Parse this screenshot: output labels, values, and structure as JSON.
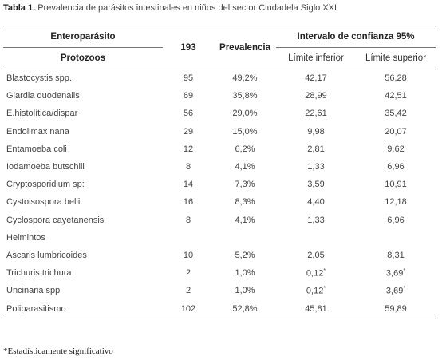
{
  "caption": {
    "label": "Tabla 1.",
    "text": " Prevalencia de parásitos intestinales en niños del sector Ciudadela Siglo XXI"
  },
  "headers": {
    "col1_top": "Enteroparásito",
    "col1_bottom": "Protozoos",
    "col2": "193",
    "col3": "Prevalencia",
    "ci_group": "Intervalo de confianza 95%",
    "ci_lower": "Límite inferior",
    "ci_upper": "Límite superior"
  },
  "rows": [
    {
      "name": "Blastocystis spp.",
      "n": "95",
      "prev": "49,2%",
      "lower": "42,17",
      "upper": "56,28"
    },
    {
      "name": "Giardia duodenalis",
      "n": "69",
      "prev": "35,8%",
      "lower": "28,99",
      "upper": "42,51"
    },
    {
      "name": "E.histolítica/dispar",
      "n": "56",
      "prev": "29,0%",
      "lower": "22,61",
      "upper": "35,42"
    },
    {
      "name": "Endolimax nana",
      "n": "29",
      "prev": "15,0%",
      "lower": "9,98",
      "upper": "20,07"
    },
    {
      "name": "Entamoeba coli",
      "n": "12",
      "prev": "6,2%",
      "lower": "2,81",
      "upper": "9,62"
    },
    {
      "name": "Iodamoeba butschlii",
      "n": "8",
      "prev": "4,1%",
      "lower": "1,33",
      "upper": "6,96"
    },
    {
      "name": "Cryptosporidium sp:",
      "n": "14",
      "prev": "7,3%",
      "lower": "3,59",
      "upper": "10,91"
    },
    {
      "name": "Cystoisospora belli",
      "n": "16",
      "prev": "8,3%",
      "lower": "4,40",
      "upper": "12,18"
    },
    {
      "name": "Cyclospora cayetanensis",
      "n": "8",
      "prev": "4,1%",
      "lower": "1,33",
      "upper": "6,96"
    },
    {
      "name": "Helmintos",
      "n": "",
      "prev": "",
      "lower": "",
      "upper": ""
    },
    {
      "name": "Ascaris lumbricoides",
      "n": "10",
      "prev": "5,2%",
      "lower": "2,05",
      "upper": "8,31"
    },
    {
      "name": "Trichuris trichura",
      "n": "2",
      "prev": "1,0%",
      "lower": "0,12*",
      "upper": "3,69*"
    },
    {
      "name": "Uncinaria spp",
      "n": "2",
      "prev": "1,0%",
      "lower": "0,12*",
      "upper": "3,69*"
    },
    {
      "name": "Poliparasitismo",
      "n": "102",
      "prev": "52,8%",
      "lower": "45,81",
      "upper": "59,89"
    }
  ],
  "footnote": "*Estadísticamente significativo"
}
